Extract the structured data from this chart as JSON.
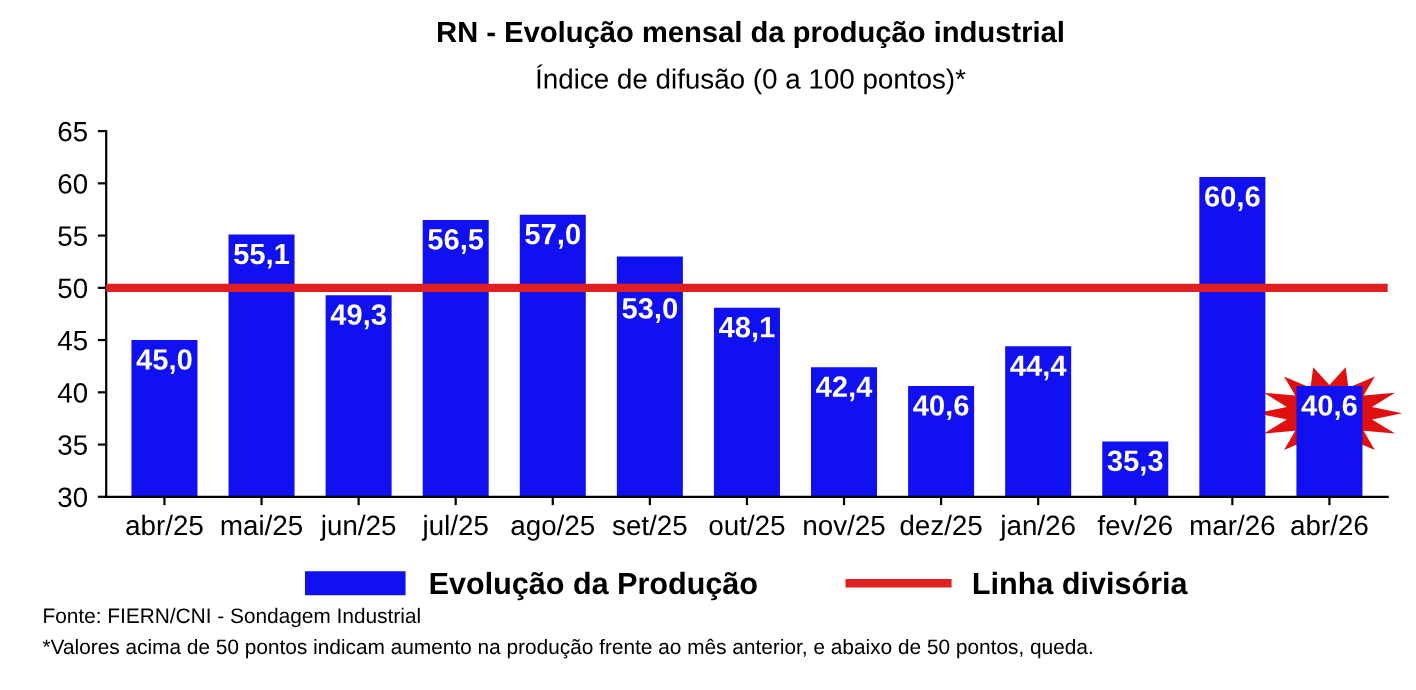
{
  "chart_data": {
    "type": "bar",
    "title": "RN - Evolução mensal da produção industrial",
    "subtitle": "Índice de difusão (0 a 100 pontos)*",
    "categories": [
      "abr/25",
      "mai/25",
      "jun/25",
      "jul/25",
      "ago/25",
      "set/25",
      "out/25",
      "nov/25",
      "dez/25",
      "jan/26",
      "fev/26",
      "mar/26",
      "abr/26"
    ],
    "series": [
      {
        "name": "Evolução da Produção",
        "color": "#1010f0",
        "values": [
          45.0,
          55.1,
          49.3,
          56.5,
          57.0,
          53.0,
          48.1,
          42.4,
          40.6,
          44.4,
          35.3,
          60.6,
          40.6
        ]
      }
    ],
    "ylim": [
      30,
      65
    ],
    "yticks": [
      30,
      35,
      40,
      45,
      50,
      55,
      60,
      65
    ],
    "grid": false,
    "legend": "bottom",
    "value_labels": [
      "45,0",
      "55,1",
      "49,3",
      "56,5",
      "57,0",
      "53,0",
      "48,1",
      "42,4",
      "40,6",
      "44,4",
      "35,3",
      "60,6",
      "40,6"
    ],
    "ref_lines": [
      {
        "axis": "y",
        "value": 50,
        "label": "Linha divisória",
        "color": "#e02020"
      }
    ],
    "annotations": [
      "Fonte: FIERN/CNI - Sondagem Industrial",
      "*Valores acima de 50 pontos indicam aumento na produção frente ao mês anterior, e abaixo de 50 pontos, queda."
    ]
  }
}
